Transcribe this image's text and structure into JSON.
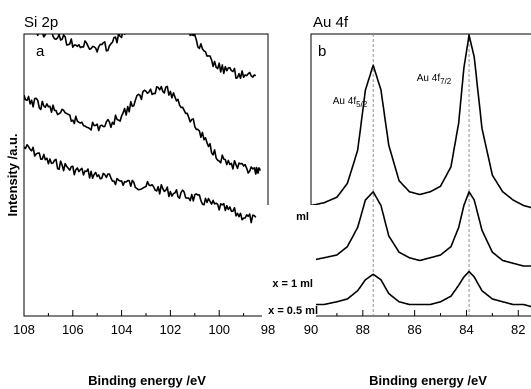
{
  "chart_data": [
    {
      "type": "line",
      "title": "Si 2p",
      "panel_label": "a",
      "xlabel": "Binding energy /eV",
      "ylabel": "Intensity /a.u.",
      "xlim": [
        108,
        98
      ],
      "x_reversed": true,
      "x_ticks": [
        108,
        106,
        104,
        102,
        100,
        98
      ],
      "y_ticks_visible": false,
      "series": [
        {
          "name": "",
          "x": [
            108,
            107.5,
            107,
            106.5,
            106,
            105.5,
            105,
            104.5,
            104,
            103.5,
            103,
            102.5,
            102,
            101.5,
            101,
            100.5,
            100,
            99.5,
            99,
            98.5
          ],
          "values": [
            0.82,
            0.78,
            0.72,
            0.7,
            0.67,
            0.65,
            0.63,
            0.61,
            0.59,
            0.57,
            0.56,
            0.54,
            0.52,
            0.5,
            0.48,
            0.45,
            0.42,
            0.39,
            0.36,
            0.33
          ]
        },
        {
          "name": "x = 1 ml",
          "x": [
            108,
            107.5,
            107,
            106.5,
            106,
            105.5,
            105,
            104.5,
            104,
            103.5,
            103,
            102.5,
            102,
            101.5,
            101,
            100.5,
            100,
            99.5,
            99,
            98.5,
            98.3
          ],
          "values": [
            0.6,
            0.58,
            0.55,
            0.51,
            0.47,
            0.44,
            0.42,
            0.44,
            0.5,
            0.58,
            0.66,
            0.68,
            0.65,
            0.56,
            0.43,
            0.31,
            0.22,
            0.17,
            0.14,
            0.12,
            0.11
          ]
        },
        {
          "name": "x = 0.5 ml",
          "x": [
            108,
            107.5,
            107,
            106.5,
            106,
            105.5,
            105,
            104.5,
            104,
            103.5,
            103,
            102.5,
            102,
            101.5,
            101,
            100.5,
            100,
            99.5,
            99,
            98.5
          ],
          "values": [
            0.34,
            0.33,
            0.31,
            0.28,
            0.25,
            0.23,
            0.21,
            0.23,
            0.3,
            0.41,
            0.51,
            0.55,
            0.52,
            0.41,
            0.27,
            0.15,
            0.08,
            0.05,
            0.03,
            0.01
          ]
        }
      ],
      "series_labels": [
        "x = 1 ml",
        "x = 0.5 ml"
      ]
    },
    {
      "type": "line",
      "title": "Au 4f",
      "panel_label": "b",
      "xlabel": "Binding energy /eV",
      "ylabel": "",
      "xlim": [
        90,
        81.2
      ],
      "x_reversed": true,
      "x_ticks": [
        90,
        88,
        86,
        84,
        82
      ],
      "y_ticks_visible": false,
      "peak_annotations": [
        {
          "base": "Au 4f",
          "subscript": "5/2",
          "x": 87.6
        },
        {
          "base": "Au 4f",
          "subscript": "7/2",
          "x": 83.9
        }
      ],
      "reference_lines_x": [
        87.6,
        83.9
      ],
      "series": [
        {
          "name": "ml",
          "x": [
            90,
            89.5,
            89,
            88.6,
            88.2,
            87.9,
            87.6,
            87.3,
            87,
            86.6,
            86.2,
            85.8,
            85.4,
            85,
            84.6,
            84.3,
            84.1,
            83.9,
            83.7,
            83.4,
            83,
            82.6,
            82.2,
            81.8,
            81.4
          ],
          "values": [
            0.38,
            0.39,
            0.41,
            0.46,
            0.58,
            0.8,
            0.89,
            0.8,
            0.6,
            0.47,
            0.43,
            0.42,
            0.43,
            0.45,
            0.52,
            0.68,
            0.88,
            1.0,
            0.92,
            0.66,
            0.49,
            0.43,
            0.4,
            0.38,
            0.37
          ]
        },
        {
          "name": "x = 1 ml",
          "x": [
            90,
            89.5,
            89,
            88.6,
            88.2,
            87.9,
            87.6,
            87.3,
            87,
            86.6,
            86.2,
            85.8,
            85.4,
            85,
            84.6,
            84.3,
            84.1,
            83.9,
            83.7,
            83.4,
            83,
            82.6,
            82.2,
            81.8,
            81.4
          ],
          "values": [
            0.18,
            0.19,
            0.2,
            0.23,
            0.3,
            0.4,
            0.43,
            0.38,
            0.27,
            0.21,
            0.19,
            0.18,
            0.19,
            0.2,
            0.23,
            0.3,
            0.38,
            0.43,
            0.4,
            0.29,
            0.21,
            0.18,
            0.17,
            0.16,
            0.16
          ]
        },
        {
          "name": "x = 0.5 ml",
          "x": [
            90,
            89.5,
            89,
            88.6,
            88.2,
            87.9,
            87.6,
            87.3,
            87,
            86.6,
            86.2,
            85.8,
            85.4,
            85,
            84.6,
            84.3,
            84.1,
            83.9,
            83.7,
            83.4,
            83,
            82.6,
            82.2,
            81.8,
            81.4
          ],
          "values": [
            0.02,
            0.02,
            0.03,
            0.04,
            0.07,
            0.11,
            0.13,
            0.11,
            0.06,
            0.03,
            0.02,
            0.02,
            0.02,
            0.03,
            0.05,
            0.09,
            0.12,
            0.14,
            0.12,
            0.07,
            0.04,
            0.03,
            0.02,
            0.02,
            0.01
          ]
        }
      ]
    }
  ]
}
